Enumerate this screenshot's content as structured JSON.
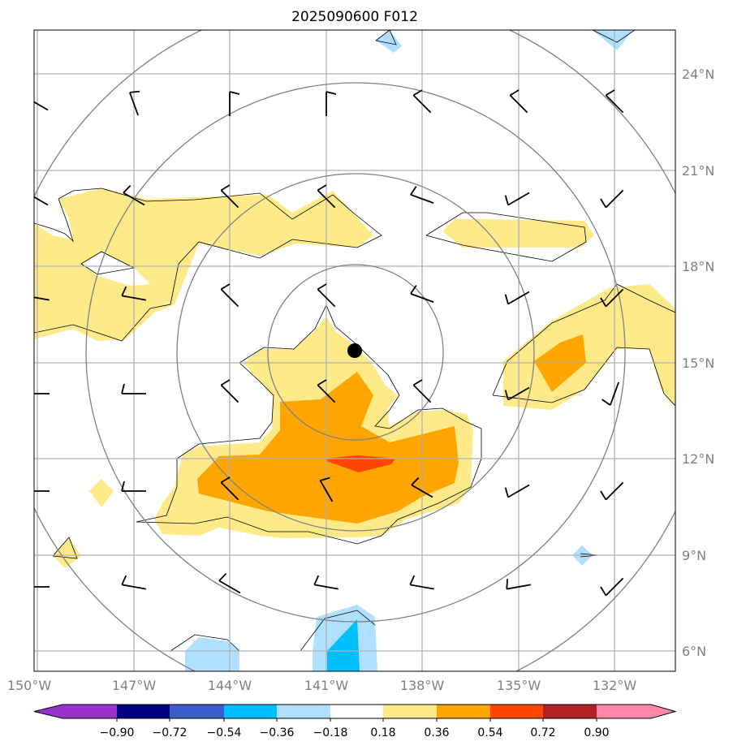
{
  "title": "2025090600 F012",
  "chart_data": {
    "type": "map",
    "title": "2025090600 F012",
    "lon_labels": [
      "150°W",
      "147°W",
      "144°W",
      "141°W",
      "138°W",
      "135°W",
      "132°W"
    ],
    "lat_labels": [
      "24°N",
      "21°N",
      "18°N",
      "15°N",
      "12°N",
      "9°N",
      "6°N"
    ],
    "colorbar": {
      "ticks": [
        "−0.90",
        "−0.72",
        "−0.54",
        "−0.36",
        "−0.18",
        "0.18",
        "0.36",
        "0.54",
        "0.72",
        "0.90"
      ],
      "colors": [
        "#9932cc",
        "#000080",
        "#3a5fcd",
        "#00bfff",
        "#b0e0ff",
        "#ffffff",
        "#ffea8a",
        "#ffa500",
        "#ff4500",
        "#b22222",
        "#ff88aa"
      ],
      "extend": "both"
    },
    "center_marker": {
      "lon": -139.8,
      "lat": 15.4
    },
    "fill_colors": {
      "yellow": "#ffea8a",
      "orange": "#ffa500",
      "red": "#ff4500",
      "lightblue": "#b0e0ff",
      "cyan": "#00bfff"
    },
    "wind_barb_directions_deg": [
      [
        300,
        340,
        0,
        0,
        315,
        315,
        315
      ],
      [
        300,
        300,
        315,
        315,
        290,
        240,
        225
      ],
      [
        280,
        280,
        315,
        315,
        290,
        240,
        225
      ],
      [
        270,
        270,
        315,
        315,
        315,
        240,
        200
      ],
      [
        270,
        270,
        315,
        330,
        300,
        240,
        225
      ],
      [
        270,
        280,
        300,
        280,
        280,
        260,
        225
      ]
    ]
  }
}
